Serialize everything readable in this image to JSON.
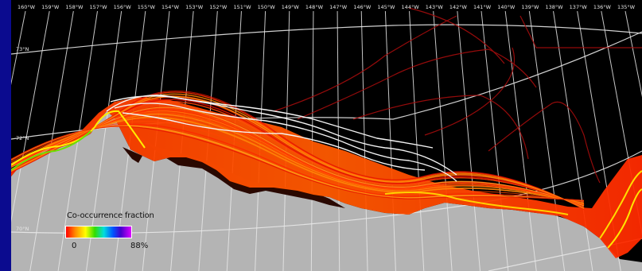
{
  "map": {
    "longitude_labels": [
      "160°W",
      "159°W",
      "158°W",
      "157°W",
      "156°W",
      "155°W",
      "154°W",
      "153°W",
      "152°W",
      "151°W",
      "150°W",
      "149°W",
      "148°W",
      "147°W",
      "146°W",
      "145°W",
      "144°W",
      "143°W",
      "142°W",
      "141°W",
      "140°W",
      "139°W",
      "138°W",
      "137°W",
      "136°W",
      "135°W"
    ],
    "latitude_labels": [
      "73°N",
      "72°N",
      "70°N"
    ],
    "colors": {
      "background": "#000000",
      "land": "#b4b4b4",
      "graticule": "#e8e8e8",
      "frame": "#0b0b8f",
      "track_low": "#ff2200",
      "track_mid": "#ff8800",
      "track_high": "#ffff00"
    }
  },
  "legend": {
    "title": "Co-occurrence fraction",
    "min_label": "0",
    "max_label": "88%",
    "scale_colors": [
      "#ff0000",
      "#ff8800",
      "#ffff00",
      "#33dd00",
      "#00dddd",
      "#0055ff",
      "#4400cc",
      "#dd00ff"
    ]
  }
}
